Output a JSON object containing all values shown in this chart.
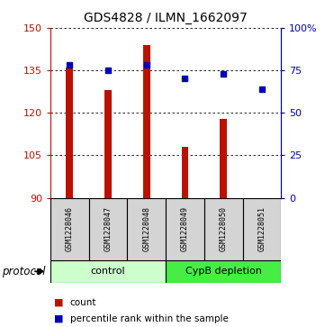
{
  "title": "GDS4828 / ILMN_1662097",
  "samples": [
    "GSM1228046",
    "GSM1228047",
    "GSM1228048",
    "GSM1228049",
    "GSM1228050",
    "GSM1228051"
  ],
  "bar_values": [
    136,
    128,
    144,
    108,
    118,
    90
  ],
  "percentile_values": [
    78,
    75,
    78,
    70,
    73,
    64
  ],
  "y_min": 90,
  "y_max": 150,
  "y_ticks": [
    90,
    105,
    120,
    135,
    150
  ],
  "right_y_ticks": [
    0,
    25,
    50,
    75,
    100
  ],
  "right_y_tick_labels": [
    "0",
    "25",
    "50",
    "75",
    "100%"
  ],
  "bar_color": "#bb1100",
  "dot_color": "#0000bb",
  "group_control_color": "#ccffcc",
  "group_depletion_color": "#44ee44",
  "groups": [
    {
      "label": "control",
      "start": 0,
      "end": 3,
      "color": "#ccffcc"
    },
    {
      "label": "CypB depletion",
      "start": 3,
      "end": 6,
      "color": "#44ee44"
    }
  ],
  "sample_box_color": "#d4d4d4",
  "protocol_label": "protocol",
  "legend_count_label": "count",
  "legend_percentile_label": "percentile rank within the sample",
  "title_fontsize": 10,
  "tick_fontsize": 8,
  "sample_fontsize": 6,
  "group_fontsize": 8,
  "legend_fontsize": 7.5,
  "bar_width": 0.18
}
